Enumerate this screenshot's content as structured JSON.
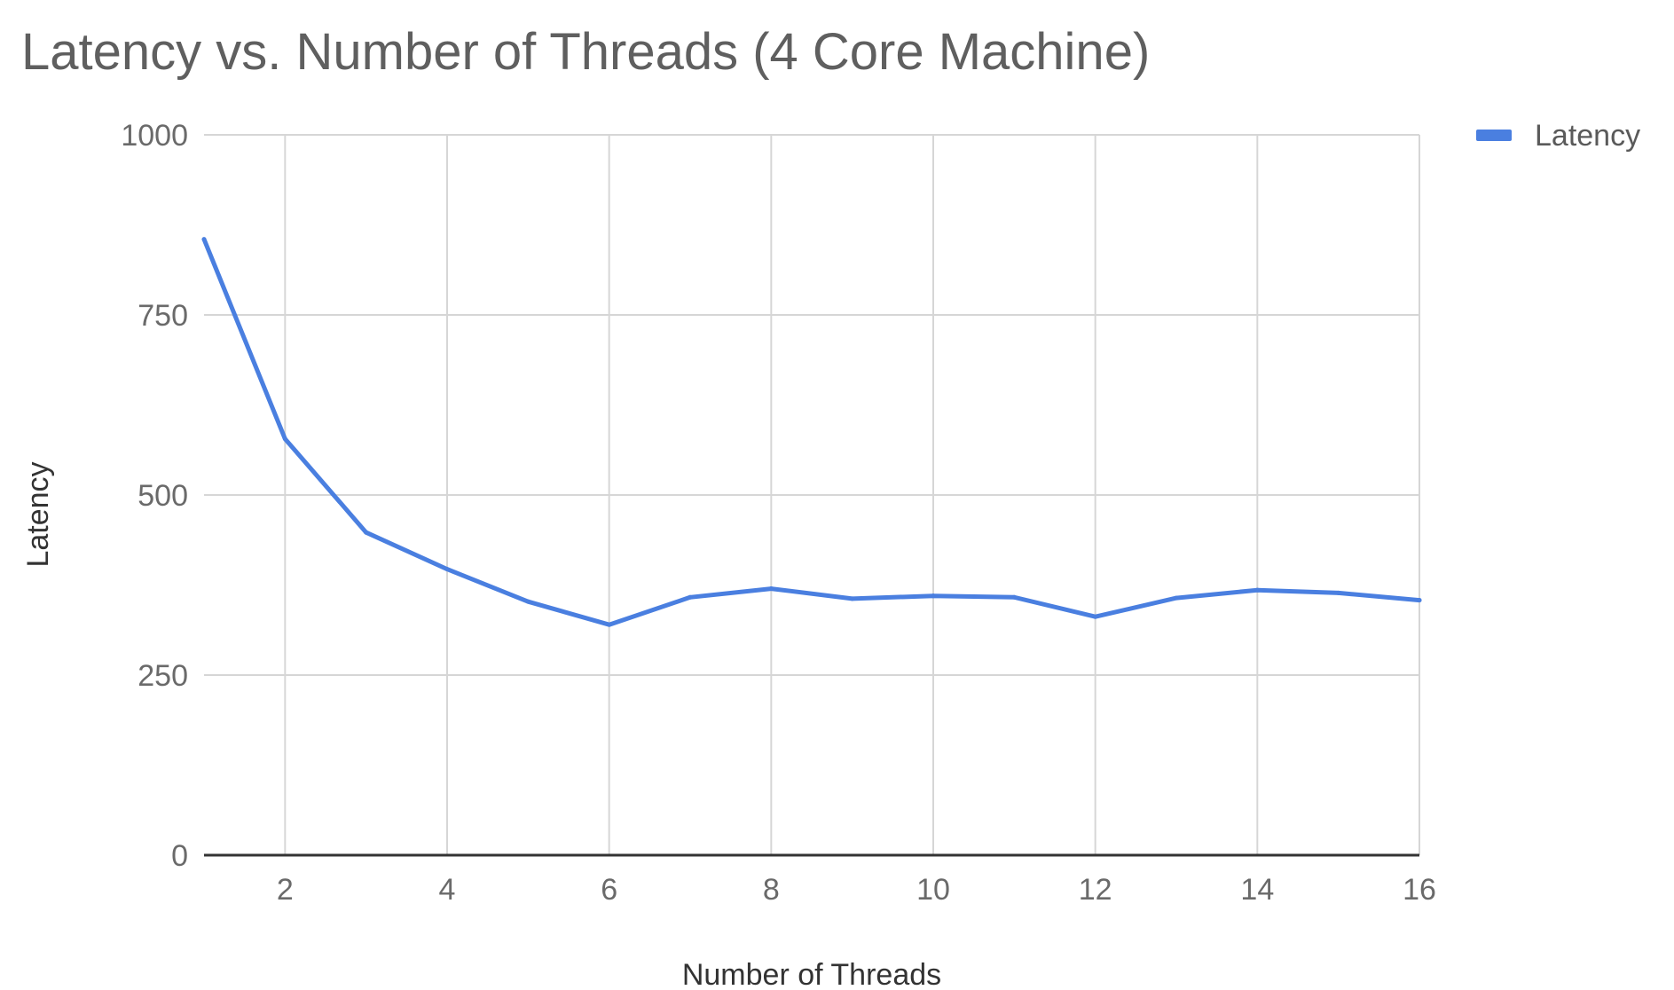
{
  "chart_data": {
    "type": "line",
    "title": "Latency vs. Number of Threads (4 Core Machine)",
    "xlabel": "Number of Threads",
    "ylabel": "Latency",
    "x": [
      1,
      2,
      3,
      4,
      5,
      6,
      7,
      8,
      9,
      10,
      11,
      12,
      13,
      14,
      15,
      16
    ],
    "series": [
      {
        "name": "Latency",
        "color": "#4a7fe0",
        "values": [
          855,
          578,
          448,
          397,
          352,
          320,
          358,
          370,
          356,
          360,
          358,
          331,
          357,
          368,
          364,
          354
        ]
      }
    ],
    "xlim": [
      1,
      16
    ],
    "ylim": [
      0,
      1000
    ],
    "x_ticks": [
      "2",
      "4",
      "6",
      "8",
      "10",
      "12",
      "14",
      "16"
    ],
    "x_tick_values": [
      2,
      4,
      6,
      8,
      10,
      12,
      14,
      16
    ],
    "y_ticks": [
      "0",
      "250",
      "500",
      "750",
      "1000"
    ],
    "y_tick_values": [
      0,
      250,
      500,
      750,
      1000
    ],
    "grid": true,
    "legend_position": "top-right"
  }
}
